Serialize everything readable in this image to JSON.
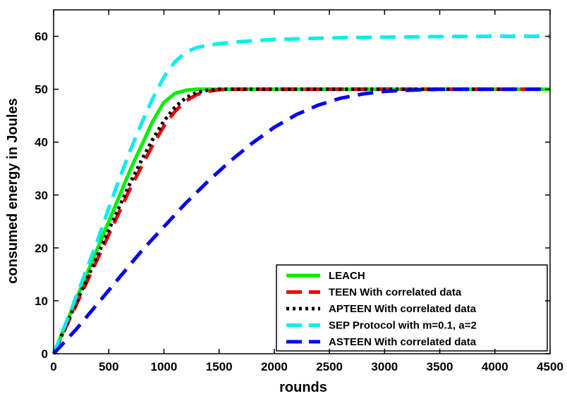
{
  "chart_data": {
    "type": "line",
    "title": "",
    "xlabel": "rounds",
    "ylabel": "consumed energy in Joules",
    "xlim": [
      0,
      4500
    ],
    "ylim": [
      0,
      65
    ],
    "xticks": [
      0,
      500,
      1000,
      1500,
      2000,
      2500,
      3000,
      3500,
      4000,
      4500
    ],
    "yticks": [
      0,
      10,
      20,
      30,
      40,
      50,
      60
    ],
    "grid": false,
    "legend_position": "bottom-right",
    "series": [
      {
        "name": "LEACH",
        "color": "#00ee00",
        "style": "solid",
        "x": [
          0,
          100,
          200,
          300,
          400,
          500,
          600,
          700,
          800,
          900,
          1000,
          1100,
          1200,
          1300,
          1400,
          1500,
          2000,
          2500,
          3000,
          3500,
          4000,
          4500
        ],
        "y": [
          0,
          5,
          10,
          15,
          20,
          25,
          30,
          35,
          39.5,
          44,
          47.5,
          49.2,
          49.8,
          50,
          50,
          50,
          50,
          50,
          50,
          50,
          50,
          50
        ]
      },
      {
        "name": "TEEN With correlated data",
        "color": "#ee0000",
        "style": "dashed",
        "x": [
          0,
          100,
          200,
          300,
          400,
          500,
          600,
          700,
          800,
          900,
          1000,
          1100,
          1200,
          1300,
          1400,
          1500,
          1600,
          1700,
          2000,
          2500,
          3000,
          3500,
          4000,
          4300
        ],
        "y": [
          0,
          4.5,
          9,
          13.5,
          18,
          22.5,
          27,
          31.5,
          35.5,
          39.5,
          43,
          45.8,
          47.8,
          49,
          49.6,
          49.9,
          50,
          50,
          50,
          50,
          50,
          50,
          50,
          50
        ]
      },
      {
        "name": "APTEEN With correlated data",
        "color": "#000000",
        "style": "dotted",
        "x": [
          0,
          100,
          200,
          300,
          400,
          500,
          600,
          700,
          800,
          900,
          1000,
          1100,
          1200,
          1300,
          1400,
          1500,
          1600,
          2000,
          2500,
          3000,
          3500,
          4000,
          4200
        ],
        "y": [
          0,
          4.7,
          9.4,
          14,
          18.7,
          23.4,
          28,
          32.5,
          36.7,
          40.6,
          44,
          46.6,
          48.4,
          49.4,
          49.8,
          50,
          50,
          50,
          50,
          50,
          50,
          50,
          50
        ]
      },
      {
        "name": "SEP Protocol with m=0.1, a=2",
        "color": "#00eeee",
        "style": "dashed",
        "x": [
          0,
          100,
          200,
          300,
          400,
          500,
          600,
          700,
          800,
          900,
          1000,
          1100,
          1200,
          1300,
          1400,
          1500,
          1700,
          2000,
          2500,
          3000,
          3500,
          4000,
          4500
        ],
        "y": [
          0,
          5.2,
          10.5,
          16,
          21.5,
          27.5,
          33.3,
          38.7,
          43.7,
          48.3,
          52.3,
          55.2,
          57,
          57.9,
          58.3,
          58.6,
          59,
          59.4,
          59.7,
          59.85,
          59.95,
          60,
          60
        ]
      },
      {
        "name": "ASTEEN With correlated data",
        "color": "#0000ee",
        "style": "dashed",
        "x": [
          0,
          200,
          400,
          600,
          800,
          1000,
          1200,
          1400,
          1600,
          1800,
          2000,
          2200,
          2400,
          2600,
          2800,
          3000,
          3200,
          3500,
          4000,
          4500
        ],
        "y": [
          0,
          4.5,
          9.5,
          14.5,
          19.5,
          24,
          28.5,
          32.6,
          36.4,
          39.8,
          42.8,
          45.2,
          47,
          48.3,
          49.1,
          49.6,
          49.8,
          50,
          50,
          50
        ]
      }
    ]
  }
}
